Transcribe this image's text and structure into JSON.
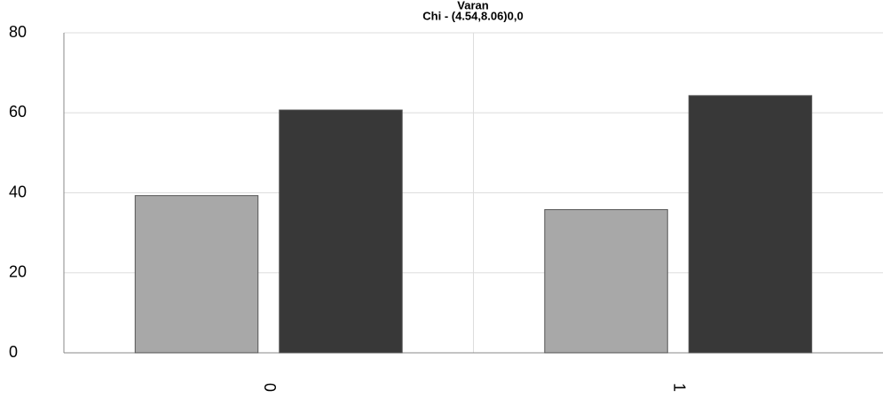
{
  "chart_data": {
    "type": "bar",
    "title": "Varan",
    "subtitle": "Chi - (4.54,8.06)0,0",
    "categories": [
      "0",
      "1"
    ],
    "series": [
      {
        "color": "#a8a8a8",
        "values": [
          39.3,
          35.8
        ]
      },
      {
        "color": "#383838",
        "values": [
          60.7,
          64.3
        ]
      }
    ],
    "ylim": [
      0,
      80
    ],
    "yticks": [
      0,
      20,
      40,
      60,
      80
    ],
    "grid": true
  }
}
